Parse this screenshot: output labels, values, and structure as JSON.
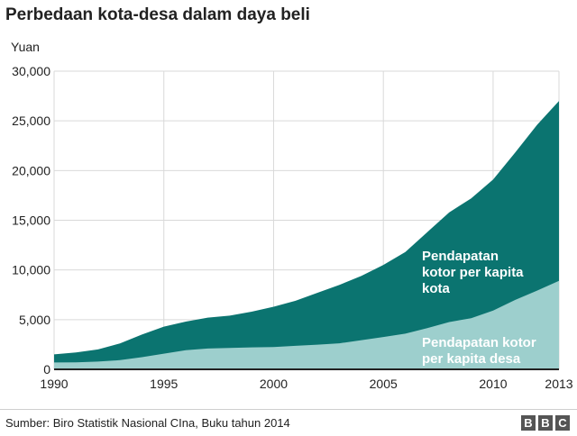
{
  "chart_data": {
    "type": "area",
    "title": "Perbedaan kota-desa dalam daya beli",
    "ylabel": "Yuan",
    "xlabel": "",
    "ylim": [
      0,
      30000
    ],
    "xlim": [
      1990,
      2013
    ],
    "x_ticks": [
      1990,
      1995,
      2000,
      2005,
      2010,
      2013
    ],
    "y_ticks": [
      0,
      5000,
      10000,
      15000,
      20000,
      25000,
      30000
    ],
    "y_tick_labels": [
      "0",
      "5,000",
      "10,000",
      "15,000",
      "20,000",
      "25,000",
      "30,000"
    ],
    "grid": true,
    "x": [
      1990,
      1991,
      1992,
      1993,
      1994,
      1995,
      1996,
      1997,
      1998,
      1999,
      2000,
      2001,
      2002,
      2003,
      2004,
      2005,
      2006,
      2007,
      2008,
      2009,
      2010,
      2011,
      2012,
      2013
    ],
    "series": [
      {
        "name": "Pendapatan kotor per kapita kota",
        "color": "#0b7470",
        "values": [
          1500,
          1700,
          2000,
          2600,
          3500,
          4300,
          4800,
          5200,
          5400,
          5800,
          6300,
          6900,
          7700,
          8500,
          9400,
          10500,
          11800,
          13800,
          15800,
          17200,
          19100,
          21800,
          24600,
          27000
        ]
      },
      {
        "name": "Pendapatan kotor per kapita desa",
        "color": "#9dcfcd",
        "values": [
          690,
          710,
          780,
          920,
          1220,
          1580,
          1930,
          2090,
          2160,
          2210,
          2250,
          2370,
          2480,
          2620,
          2940,
          3250,
          3590,
          4140,
          4760,
          5150,
          5920,
          6980,
          7920,
          8900
        ]
      }
    ],
    "annotations": [
      {
        "series": 0,
        "lines": [
          "Pendapatan",
          "kotor per kapita",
          "kota"
        ]
      },
      {
        "series": 1,
        "lines": [
          "Pendapatan kotor",
          "per kapita desa"
        ]
      }
    ]
  },
  "footer": {
    "source": "Sumber: Biro Statistik Nasional CIna, Buku tahun 2014",
    "logo": [
      "B",
      "B",
      "C"
    ]
  }
}
